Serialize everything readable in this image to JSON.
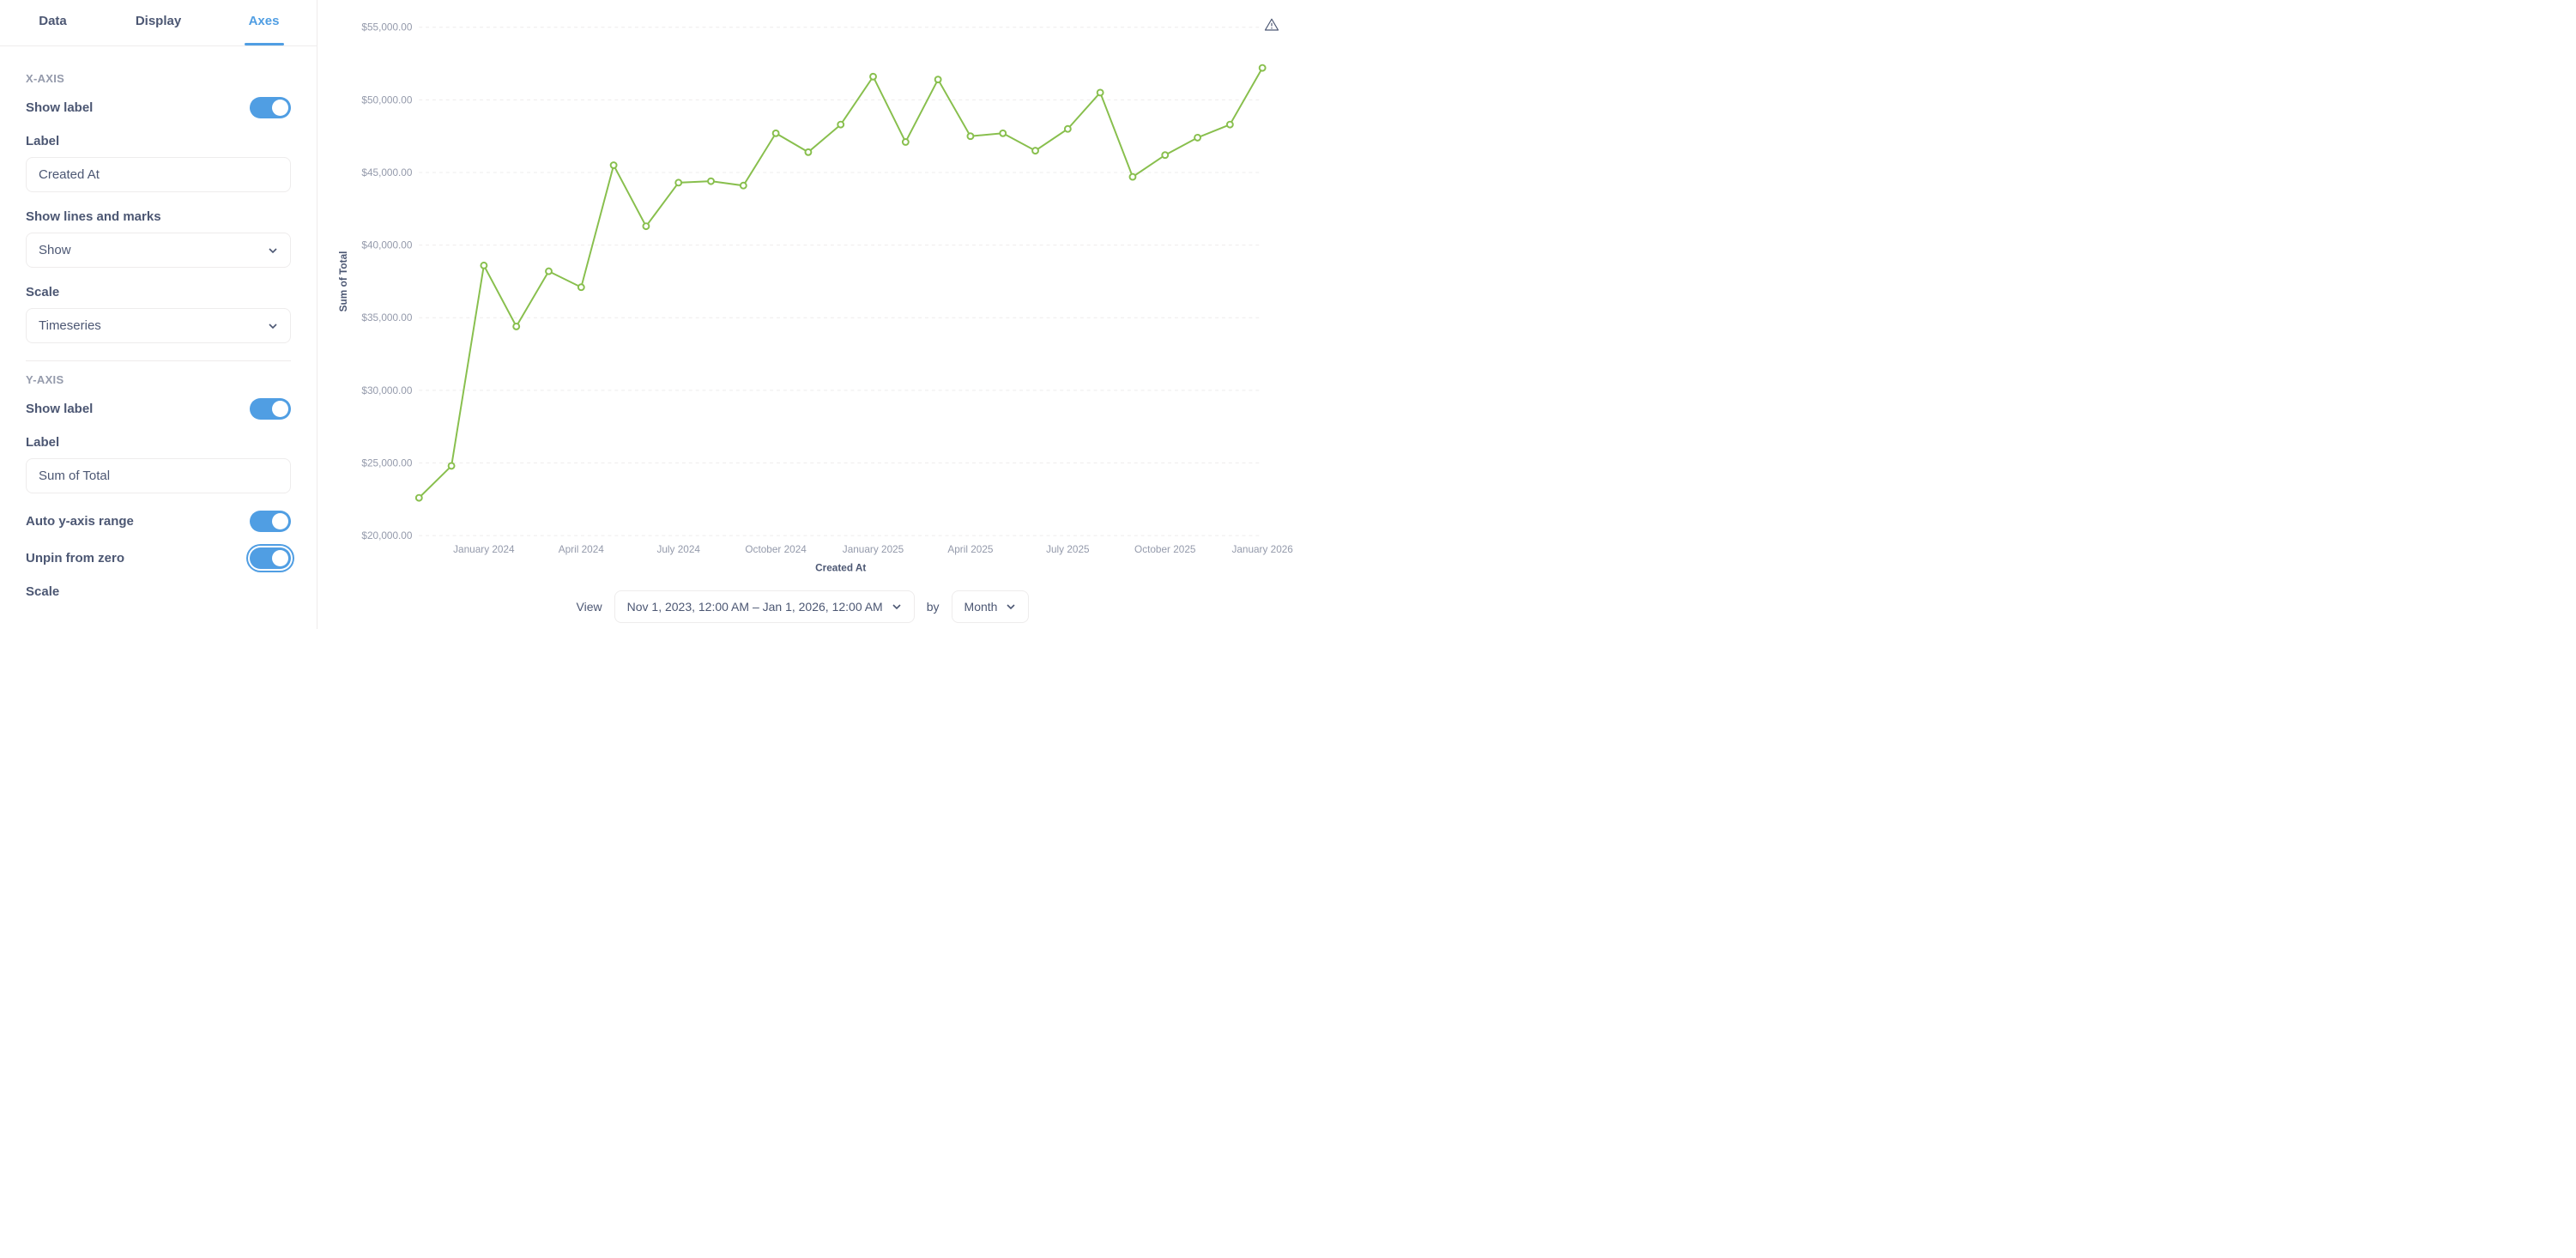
{
  "tabs": {
    "data": "Data",
    "display": "Display",
    "axes": "Axes",
    "active": "axes"
  },
  "x_axis": {
    "header": "X-AXIS",
    "show_label_text": "Show label",
    "show_label": true,
    "label_text": "Label",
    "label_value": "Created At",
    "lines_marks_text": "Show lines and marks",
    "lines_marks_value": "Show",
    "scale_text": "Scale",
    "scale_value": "Timeseries"
  },
  "y_axis": {
    "header": "Y-AXIS",
    "show_label_text": "Show label",
    "show_label": true,
    "label_text": "Label",
    "label_value": "Sum of Total",
    "auto_range_text": "Auto y-axis range",
    "auto_range": true,
    "unpin_text": "Unpin from zero",
    "unpin": true,
    "scale_text": "Scale"
  },
  "footer": {
    "view_label": "View",
    "range": "Nov 1, 2023, 12:00 AM – Jan 1, 2026, 12:00 AM",
    "by_label": "by",
    "granularity": "Month"
  },
  "chart": {
    "type": "line",
    "x_label": "Created At",
    "y_label": "Sum of Total",
    "ylim": [
      20000,
      55000
    ],
    "y_ticks": [
      {
        "v": 20000,
        "label": "$20,000.00"
      },
      {
        "v": 25000,
        "label": "$25,000.00"
      },
      {
        "v": 30000,
        "label": "$30,000.00"
      },
      {
        "v": 35000,
        "label": "$35,000.00"
      },
      {
        "v": 40000,
        "label": "$40,000.00"
      },
      {
        "v": 45000,
        "label": "$45,000.00"
      },
      {
        "v": 50000,
        "label": "$50,000.00"
      },
      {
        "v": 55000,
        "label": "$55,000.00"
      }
    ],
    "x_ticks": [
      {
        "i": 2,
        "label": "January 2024"
      },
      {
        "i": 5,
        "label": "April 2024"
      },
      {
        "i": 8,
        "label": "July 2024"
      },
      {
        "i": 11,
        "label": "October 2024"
      },
      {
        "i": 14,
        "label": "January 2025"
      },
      {
        "i": 17,
        "label": "April 2025"
      },
      {
        "i": 20,
        "label": "July 2025"
      },
      {
        "i": 23,
        "label": "October 2025"
      },
      {
        "i": 26,
        "label": "January 2026"
      }
    ],
    "points": [
      22600,
      24800,
      38600,
      34400,
      38200,
      37100,
      45500,
      41300,
      44300,
      44400,
      44100,
      47700,
      46400,
      48300,
      51600,
      47100,
      51400,
      47500,
      47700,
      46500,
      48000,
      50500,
      44700,
      46200,
      47400,
      48300,
      52200
    ],
    "line_color": "#88bf4d",
    "marker_fill": "#ffffff",
    "marker_radius": 3.5,
    "line_width": 2,
    "grid_color": "#eeecec",
    "grid_dash": "4 4",
    "axis_text_color": "#949aab",
    "label_text_color": "#4c5773",
    "tick_fontsize": 12,
    "label_fontsize": 12
  }
}
